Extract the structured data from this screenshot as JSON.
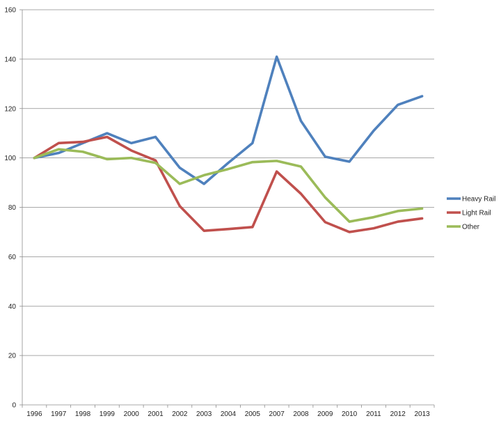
{
  "chart_data": {
    "type": "line",
    "title": "",
    "xlabel": "",
    "ylabel": "",
    "categories": [
      "1996",
      "1997",
      "1998",
      "1999",
      "2000",
      "2001",
      "2002",
      "2003",
      "2004",
      "2005",
      "2007",
      "2008",
      "2009",
      "2010",
      "2011",
      "2012",
      "2013"
    ],
    "ylim": [
      0,
      160
    ],
    "yticks": [
      0,
      20,
      40,
      60,
      80,
      100,
      120,
      140,
      160
    ],
    "grid": "horizontal",
    "legend_position": "right",
    "series": [
      {
        "name": "Heavy Rail",
        "color": "#4f81bd",
        "values": [
          100,
          102,
          106,
          110,
          106,
          108.5,
          96,
          89.5,
          98,
          106,
          141,
          115,
          100.5,
          98.5,
          111,
          121.5,
          125
        ]
      },
      {
        "name": "Light Rail",
        "color": "#c0504d",
        "values": [
          100,
          106,
          106.5,
          108.5,
          103,
          99,
          80.5,
          70.5,
          71.2,
          72,
          94.5,
          85.5,
          74,
          70,
          71.5,
          74.2,
          75.5
        ]
      },
      {
        "name": "Other",
        "color": "#9bbb59",
        "values": [
          100,
          103.5,
          102.5,
          99.5,
          100,
          98,
          89.5,
          93,
          95.5,
          98.3,
          98.8,
          96.5,
          84,
          74.2,
          76,
          78.5,
          79.5
        ]
      }
    ]
  }
}
